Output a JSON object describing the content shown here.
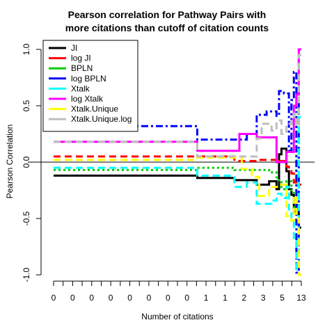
{
  "chart_data": {
    "type": "line",
    "title_line1": "Pearson correlation for Pathway Pairs with",
    "title_line2": "more citations than cutoff of citation counts",
    "xlabel": "Number of citations",
    "ylabel": "Pearson Correlation",
    "ylim": [
      -1.0,
      1.0
    ],
    "yticks": [
      "-1.0",
      "-0.5",
      "0.0",
      "0.5",
      "1.0"
    ],
    "xtick_labels": [
      "0",
      "0",
      "0",
      "0",
      "0",
      "0",
      "0",
      "0",
      "1",
      "1",
      "2",
      "3",
      "5",
      "13"
    ],
    "reference_line_y": 0.0,
    "legend_position": "top-left",
    "x_index_range": [
      0,
      1
    ],
    "series": [
      {
        "name": "JI",
        "color": "#000000",
        "dash": "solid",
        "x": [
          0,
          0.58,
          0.58,
          0.73,
          0.73,
          0.82,
          0.82,
          0.87,
          0.87,
          0.9,
          0.9,
          0.91,
          0.91,
          0.92,
          0.92,
          0.94,
          0.94,
          0.95,
          0.95,
          0.96,
          0.96,
          0.97,
          0.97,
          0.98,
          0.98,
          0.99,
          0.99,
          1.0
        ],
        "y": [
          -0.12,
          -0.12,
          -0.14,
          -0.14,
          -0.16,
          -0.16,
          -0.2,
          -0.2,
          -0.17,
          -0.17,
          -0.24,
          -0.24,
          0.07,
          0.07,
          0.12,
          0.12,
          -0.08,
          -0.08,
          -0.24,
          -0.24,
          -0.29,
          -0.29,
          -0.44,
          -0.44,
          -0.38,
          -0.38,
          -0.58,
          -0.58
        ]
      },
      {
        "name": "log JI",
        "color": "#ff0000",
        "dash": "dash",
        "x": [
          0,
          0.58,
          0.58,
          0.73,
          0.73,
          0.82,
          0.82,
          0.87,
          0.87,
          0.9,
          0.9,
          0.91,
          0.91,
          0.94,
          0.94,
          0.95,
          0.95,
          0.96,
          0.96,
          0.97,
          0.97,
          0.98,
          0.98,
          0.99,
          0.99,
          1.0
        ],
        "y": [
          0.05,
          0.05,
          0.05,
          0.05,
          0.01,
          0.01,
          0.02,
          0.02,
          0.02,
          0.02,
          0.0,
          0.0,
          0.01,
          0.01,
          -0.04,
          -0.04,
          -0.08,
          -0.08,
          -0.1,
          -0.1,
          -0.18,
          -0.18,
          -0.2,
          -0.2,
          -0.2,
          -0.2
        ]
      },
      {
        "name": "BPLN",
        "color": "#00cc00",
        "dash": "dot",
        "x": [
          0,
          0.58,
          0.58,
          0.73,
          0.73,
          0.8,
          0.8,
          0.82,
          0.82,
          0.87,
          0.87,
          0.9,
          0.9,
          0.92,
          0.92,
          0.94,
          0.94,
          0.96,
          0.96,
          0.97,
          0.97,
          0.98,
          0.98,
          0.99,
          0.99,
          1.0
        ],
        "y": [
          -0.07,
          -0.07,
          -0.05,
          -0.05,
          -0.07,
          -0.07,
          -0.07,
          -0.07,
          -0.07,
          -0.07,
          -0.09,
          -0.09,
          -0.16,
          -0.16,
          -0.24,
          -0.24,
          -0.17,
          -0.17,
          -0.25,
          -0.25,
          -0.4,
          -0.4,
          0.65,
          0.65,
          0.9,
          0.9
        ]
      },
      {
        "name": "log BPLN",
        "color": "#0000ff",
        "dash": "dashdot",
        "x": [
          0,
          0.58,
          0.58,
          0.73,
          0.73,
          0.78,
          0.78,
          0.82,
          0.82,
          0.86,
          0.86,
          0.9,
          0.9,
          0.91,
          0.91,
          0.93,
          0.93,
          0.95,
          0.95,
          0.96,
          0.96,
          0.97,
          0.97,
          0.98,
          0.98,
          0.99,
          0.99,
          1.0
        ],
        "y": [
          0.32,
          0.32,
          0.2,
          0.2,
          0.2,
          0.2,
          0.25,
          0.25,
          0.42,
          0.42,
          0.45,
          0.45,
          0.41,
          0.41,
          0.63,
          0.63,
          0.61,
          0.61,
          0.1,
          0.1,
          0.55,
          0.55,
          0.8,
          0.8,
          -0.98,
          -0.98,
          1.0,
          1.0
        ]
      },
      {
        "name": "Xtalk",
        "color": "#00ffff",
        "dash": "dash",
        "x": [
          0,
          0.58,
          0.58,
          0.73,
          0.73,
          0.78,
          0.78,
          0.82,
          0.82,
          0.88,
          0.88,
          0.9,
          0.9,
          0.92,
          0.92,
          0.94,
          0.94,
          0.95,
          0.95,
          0.96,
          0.96,
          0.97,
          0.97,
          0.98,
          0.98,
          0.99,
          0.99,
          1.0
        ],
        "y": [
          -0.05,
          -0.05,
          -0.12,
          -0.12,
          -0.22,
          -0.22,
          -0.18,
          -0.18,
          -0.37,
          -0.37,
          -0.34,
          -0.34,
          -0.28,
          -0.28,
          -0.32,
          -0.32,
          -0.22,
          -0.22,
          -0.42,
          -0.42,
          -0.5,
          -0.5,
          -0.7,
          -0.7,
          -0.95,
          -0.95,
          0.4,
          0.4
        ]
      },
      {
        "name": "log Xtalk",
        "color": "#ff00ff",
        "dash": "solid",
        "x": [
          0,
          0.58,
          0.58,
          0.73,
          0.73,
          0.75,
          0.75,
          0.82,
          0.82,
          0.9,
          0.9,
          0.94,
          0.94,
          0.96,
          0.96,
          0.97,
          0.97,
          0.98,
          0.98,
          0.99,
          0.99,
          1.0
        ],
        "y": [
          0.18,
          0.18,
          0.1,
          0.1,
          0.1,
          0.1,
          0.25,
          0.25,
          0.22,
          0.22,
          0.0,
          0.0,
          0.09,
          0.09,
          0.09,
          0.09,
          0.5,
          0.5,
          0.6,
          0.6,
          1.0,
          1.0
        ]
      },
      {
        "name": "Xtalk.Unique",
        "color": "#ffff00",
        "dash": "dash",
        "x": [
          0,
          0.58,
          0.58,
          0.76,
          0.76,
          0.8,
          0.8,
          0.83,
          0.83,
          0.87,
          0.87,
          0.91,
          0.91,
          0.94,
          0.94,
          0.96,
          0.96,
          0.97,
          0.97,
          0.98,
          0.98,
          0.99,
          0.99,
          1.0
        ],
        "y": [
          0.02,
          0.02,
          0.04,
          0.04,
          -0.06,
          -0.06,
          -0.13,
          -0.13,
          -0.3,
          -0.3,
          -0.22,
          -0.22,
          -0.2,
          -0.2,
          -0.48,
          -0.48,
          -0.52,
          -0.52,
          -0.3,
          -0.3,
          -0.5,
          -0.5,
          -1.0,
          -1.0
        ]
      },
      {
        "name": "Xtalk.Unique.log",
        "color": "#bebebe",
        "dash": "dash",
        "x": [
          0,
          0.58,
          0.58,
          0.76,
          0.76,
          0.82,
          0.82,
          0.84,
          0.84,
          0.88,
          0.88,
          0.9,
          0.9,
          0.92,
          0.92,
          0.94,
          0.94,
          0.96,
          0.96,
          0.97,
          0.97,
          0.98,
          0.98,
          0.99,
          0.99,
          1.0
        ],
        "y": [
          0.18,
          0.18,
          0.05,
          0.05,
          0.05,
          0.05,
          0.21,
          0.21,
          0.34,
          0.34,
          0.28,
          0.28,
          0.37,
          0.37,
          0.25,
          0.25,
          0.34,
          0.34,
          0.4,
          0.4,
          0.43,
          0.43,
          0.32,
          0.32,
          0.95,
          0.95
        ]
      }
    ]
  }
}
